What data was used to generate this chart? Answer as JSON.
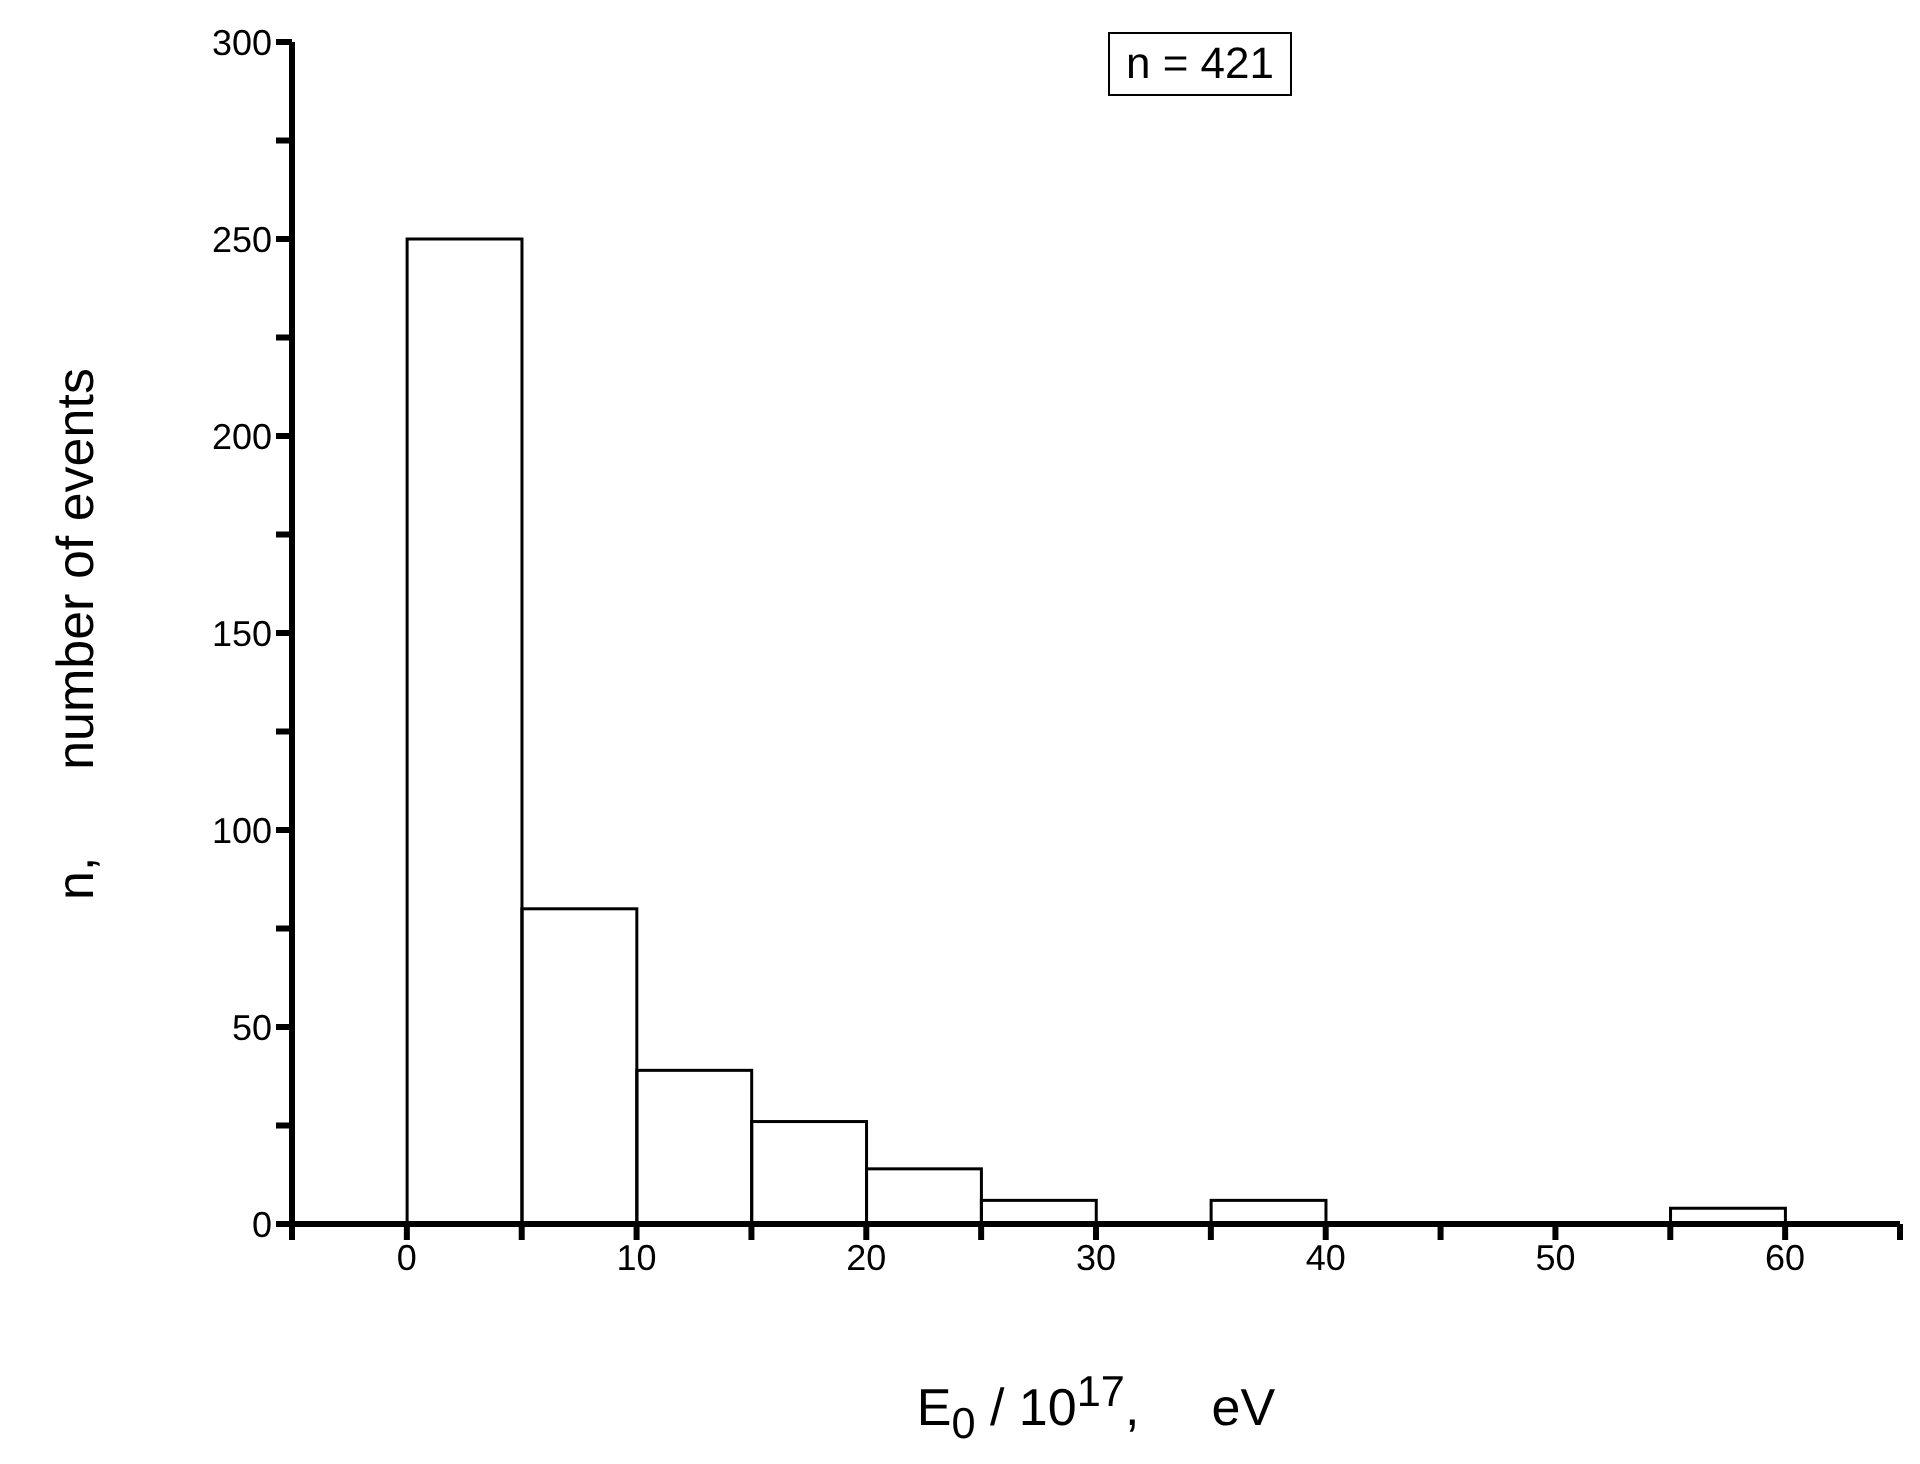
{
  "chart_data": {
    "type": "histogram",
    "xlabel": "E$_{0}$ / 10$^{17}$,     eV",
    "ylabel": "n,      number of events",
    "annotations": [
      "n = 421"
    ],
    "bins": [
      0,
      5,
      10,
      15,
      20,
      25,
      30,
      35,
      40,
      45,
      50,
      55,
      60
    ],
    "values": [
      250,
      80,
      39,
      26,
      14,
      6,
      0,
      6,
      0,
      0,
      0,
      4
    ],
    "color": "#000000",
    "xlim": [
      -5,
      65
    ],
    "xticks": [
      {
        "value": -5,
        "label": null
      },
      0,
      {
        "value": 5,
        "label": null
      },
      10,
      {
        "value": 15,
        "label": null
      },
      20,
      {
        "value": 25,
        "label": null
      },
      30,
      {
        "value": 35,
        "label": null
      },
      40,
      {
        "value": 45,
        "label": null
      },
      50,
      {
        "value": 55,
        "label": null
      },
      60,
      {
        "value": 65,
        "label": null
      }
    ],
    "ylim": [
      0,
      300
    ],
    "yticks": [
      0,
      {
        "value": 25,
        "label": null
      },
      50,
      {
        "value": 75,
        "label": null
      },
      100,
      {
        "value": 125,
        "label": null
      },
      150,
      {
        "value": 175,
        "label": null
      },
      200,
      {
        "value": 225,
        "label": null
      },
      250,
      {
        "value": 275,
        "label": null
      },
      300
    ],
    "grid": false
  }
}
